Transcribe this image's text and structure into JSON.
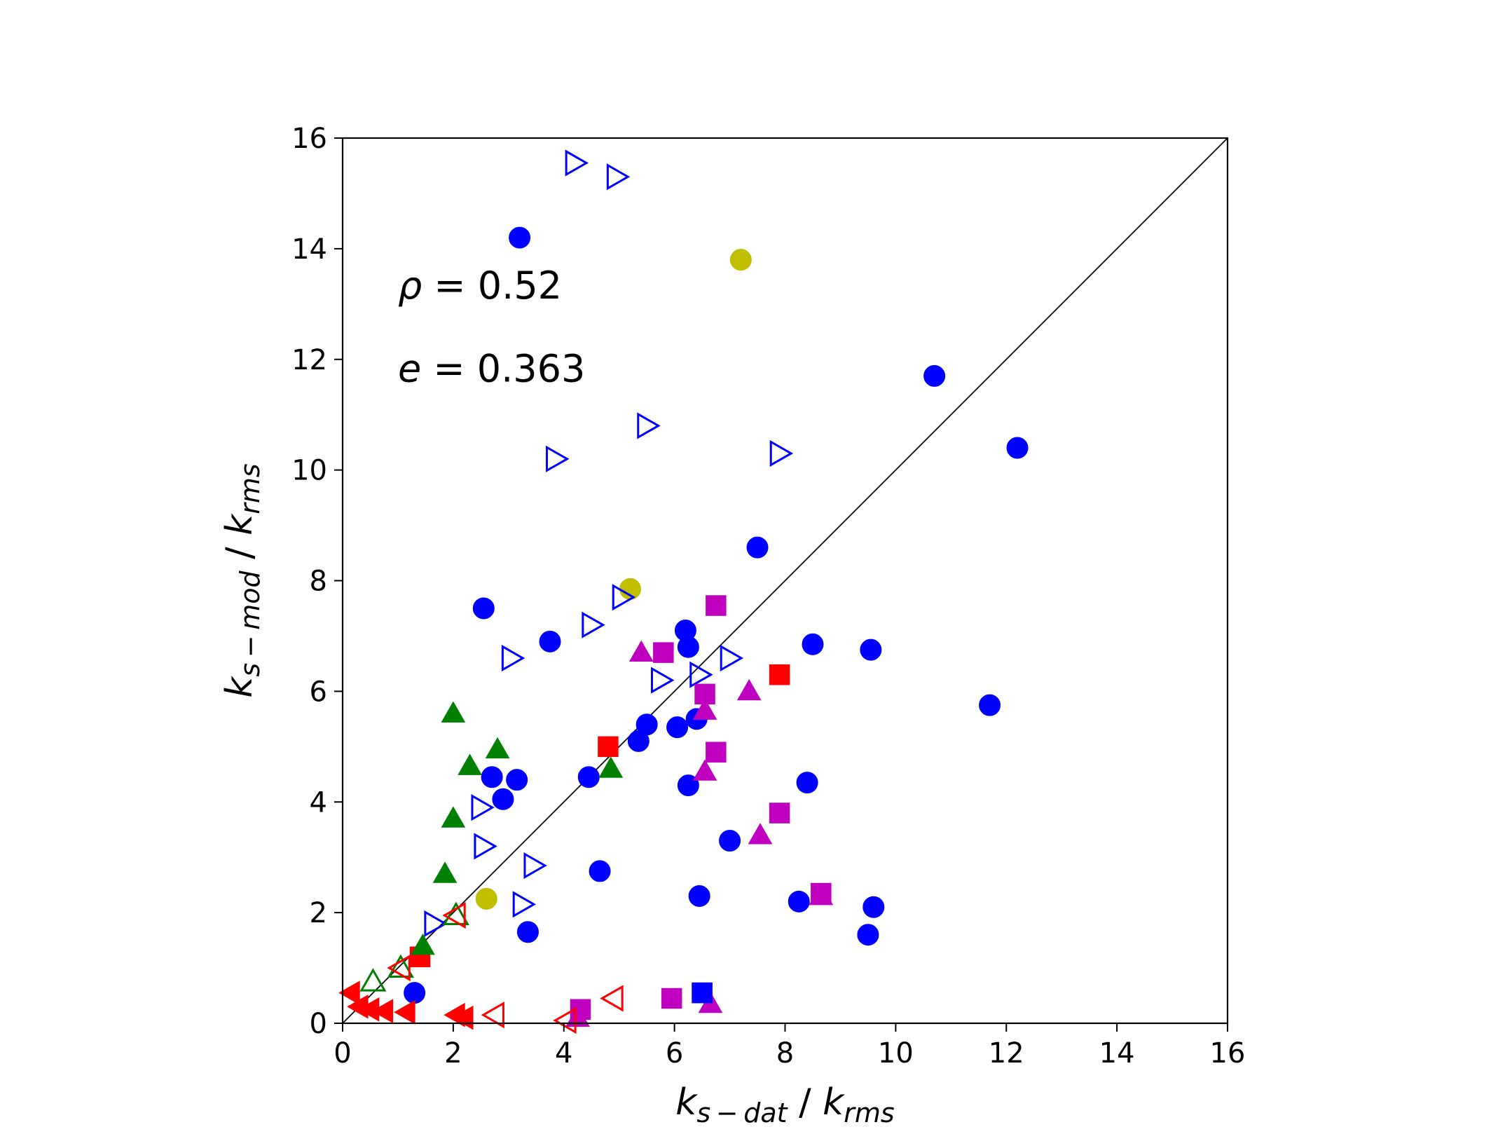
{
  "chart_data": {
    "type": "scatter",
    "title": "",
    "xlabel": {
      "base": "k",
      "sub": "s − dat",
      "sep": " / ",
      "base2": "k",
      "sub2": "rms"
    },
    "ylabel": {
      "base": "k",
      "sub": "s − mod",
      "sep": " / ",
      "base2": "k",
      "sub2": "rms"
    },
    "xlim": [
      0,
      16
    ],
    "ylim": [
      0,
      16
    ],
    "xticks": [
      0,
      2,
      4,
      6,
      8,
      10,
      12,
      14,
      16
    ],
    "yticks": [
      0,
      2,
      4,
      6,
      8,
      10,
      12,
      14,
      16
    ],
    "grid": false,
    "reference_line": {
      "from": [
        0,
        0
      ],
      "to": [
        16,
        16
      ]
    },
    "annotations": [
      {
        "symbol": "ρ",
        "text": " = 0.52",
        "at": [
          1,
          13.1
        ]
      },
      {
        "symbol": "e",
        "text": " = 0.363",
        "at": [
          1,
          11.6
        ]
      }
    ],
    "series": [
      {
        "name": "blue-filled-circle",
        "marker": "circle",
        "filled": true,
        "color": "#0000ff",
        "points": [
          [
            3.2,
            14.2
          ],
          [
            10.7,
            11.7
          ],
          [
            12.2,
            10.4
          ],
          [
            7.5,
            8.6
          ],
          [
            2.55,
            7.5
          ],
          [
            3.75,
            6.9
          ],
          [
            6.2,
            7.1
          ],
          [
            6.25,
            6.8
          ],
          [
            8.5,
            6.85
          ],
          [
            9.55,
            6.75
          ],
          [
            11.7,
            5.75
          ],
          [
            5.5,
            5.4
          ],
          [
            5.35,
            5.1
          ],
          [
            6.05,
            5.35
          ],
          [
            6.4,
            5.5
          ],
          [
            2.7,
            4.45
          ],
          [
            3.15,
            4.4
          ],
          [
            2.9,
            4.05
          ],
          [
            4.45,
            4.45
          ],
          [
            6.25,
            4.3
          ],
          [
            8.4,
            4.35
          ],
          [
            7.0,
            3.3
          ],
          [
            4.65,
            2.75
          ],
          [
            6.45,
            2.3
          ],
          [
            8.25,
            2.2
          ],
          [
            9.6,
            2.1
          ],
          [
            9.5,
            1.6
          ],
          [
            3.35,
            1.65
          ],
          [
            1.3,
            0.55
          ]
        ]
      },
      {
        "name": "yellow-filled-circle",
        "marker": "circle",
        "filled": true,
        "color": "#bfbf00",
        "points": [
          [
            7.2,
            13.8
          ],
          [
            5.2,
            7.85
          ],
          [
            2.6,
            2.25
          ]
        ]
      },
      {
        "name": "blue-open-triangle-right",
        "marker": "triangle-right",
        "filled": false,
        "color": "#0000ff",
        "points": [
          [
            4.2,
            15.55
          ],
          [
            4.95,
            15.3
          ],
          [
            5.5,
            10.8
          ],
          [
            3.85,
            10.2
          ],
          [
            7.9,
            10.3
          ],
          [
            5.05,
            7.7
          ],
          [
            4.5,
            7.2
          ],
          [
            3.05,
            6.6
          ],
          [
            6.45,
            6.3
          ],
          [
            7.0,
            6.6
          ],
          [
            5.75,
            6.2
          ],
          [
            2.5,
            3.9
          ],
          [
            2.55,
            3.2
          ],
          [
            3.45,
            2.85
          ],
          [
            3.25,
            2.15
          ],
          [
            1.65,
            1.8
          ]
        ]
      },
      {
        "name": "magenta-filled-square",
        "marker": "square",
        "filled": true,
        "color": "#bf00bf",
        "points": [
          [
            6.75,
            7.55
          ],
          [
            5.8,
            6.7
          ],
          [
            6.55,
            5.95
          ],
          [
            6.75,
            4.9
          ],
          [
            7.9,
            3.8
          ],
          [
            8.65,
            2.35
          ],
          [
            5.95,
            0.45
          ],
          [
            4.3,
            0.25
          ]
        ]
      },
      {
        "name": "magenta-filled-triangle-up",
        "marker": "triangle-up",
        "filled": true,
        "color": "#bf00bf",
        "points": [
          [
            5.4,
            6.7
          ],
          [
            6.55,
            5.65
          ],
          [
            7.35,
            6.0
          ],
          [
            6.55,
            4.55
          ],
          [
            7.55,
            3.4
          ],
          [
            8.65,
            2.3
          ],
          [
            6.65,
            0.35
          ],
          [
            4.25,
            0.1
          ]
        ]
      },
      {
        "name": "red-filled-square",
        "marker": "square",
        "filled": true,
        "color": "#ff0000",
        "points": [
          [
            7.9,
            6.3
          ],
          [
            4.8,
            5.0
          ],
          [
            1.4,
            1.2
          ],
          [
            6.5,
            0.55
          ]
        ]
      },
      {
        "name": "green-filled-triangle-up",
        "marker": "triangle-up",
        "filled": true,
        "color": "#008000",
        "points": [
          [
            2.0,
            5.6
          ],
          [
            2.3,
            4.65
          ],
          [
            2.8,
            4.95
          ],
          [
            4.85,
            4.6
          ],
          [
            2.0,
            3.7
          ],
          [
            1.85,
            2.7
          ],
          [
            1.45,
            1.4
          ]
        ]
      },
      {
        "name": "green-open-triangle-up",
        "marker": "triangle-up",
        "filled": false,
        "color": "#008000",
        "points": [
          [
            2.05,
            1.95
          ],
          [
            1.05,
            1.0
          ],
          [
            0.55,
            0.75
          ]
        ]
      },
      {
        "name": "red-filled-triangle-left",
        "marker": "triangle-left",
        "filled": true,
        "color": "#ff0000",
        "points": [
          [
            0.15,
            0.55
          ],
          [
            0.3,
            0.3
          ],
          [
            0.5,
            0.25
          ],
          [
            0.75,
            0.22
          ],
          [
            1.15,
            0.2
          ],
          [
            2.05,
            0.15
          ],
          [
            2.2,
            0.1
          ]
        ]
      },
      {
        "name": "red-open-triangle-left",
        "marker": "triangle-left",
        "filled": false,
        "color": "#ff0000",
        "points": [
          [
            2.05,
            1.95
          ],
          [
            1.05,
            1.0
          ],
          [
            2.75,
            0.15
          ],
          [
            4.9,
            0.45
          ],
          [
            4.05,
            0.05
          ]
        ]
      },
      {
        "name": "blue-filled-square",
        "marker": "square",
        "filled": true,
        "color": "#0000ff",
        "points": [
          [
            6.5,
            0.55
          ]
        ]
      }
    ]
  }
}
